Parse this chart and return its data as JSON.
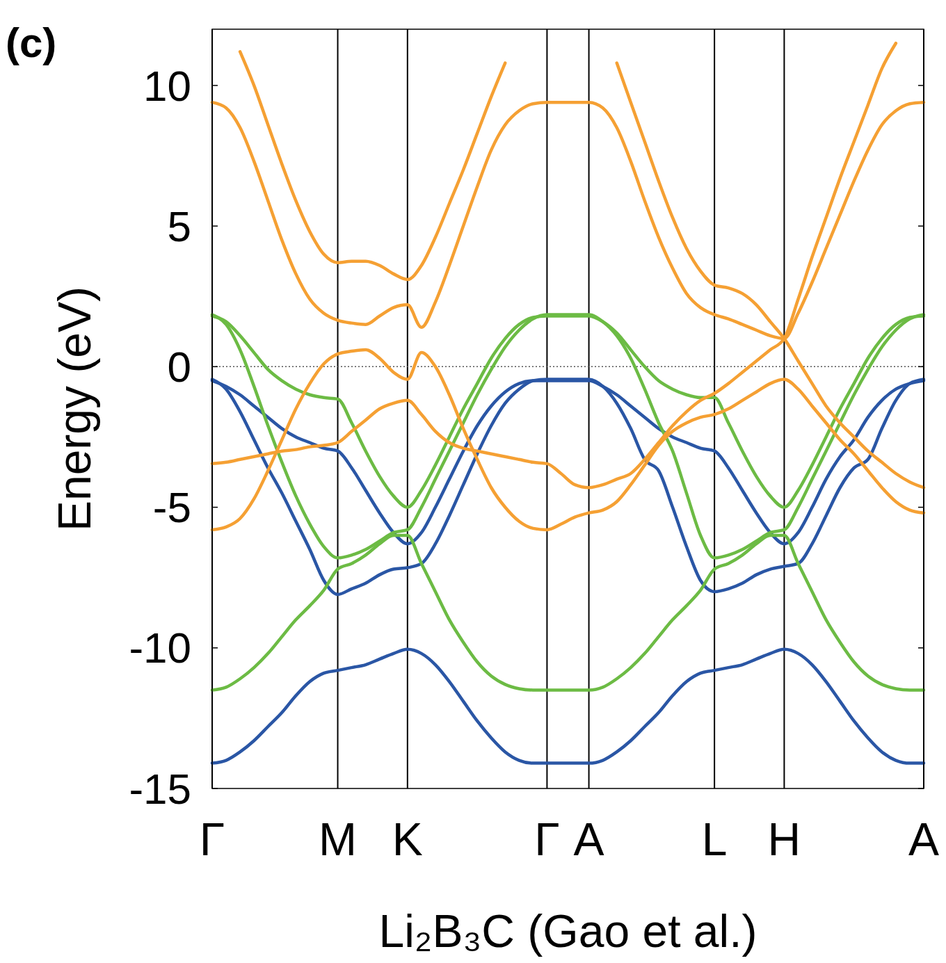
{
  "chart_data": {
    "type": "line",
    "xlabel": "Li₂B₃C (Gao et al.)",
    "ylabel": "Energy (eV)",
    "annotations": [
      "(c)"
    ],
    "categories": [
      "Γ",
      null,
      null,
      null,
      null,
      null,
      null,
      null,
      null,
      "M",
      null,
      null,
      null,
      null,
      "K",
      null,
      null,
      null,
      null,
      null,
      null,
      null,
      null,
      null,
      "Γ",
      null,
      null,
      "A",
      null,
      null,
      null,
      null,
      null,
      null,
      null,
      null,
      "L",
      null,
      null,
      null,
      null,
      "H",
      null,
      null,
      null,
      null,
      null,
      null,
      null,
      null,
      null,
      "A"
    ],
    "ylim": [
      -15,
      12
    ],
    "yticks": [
      -15,
      -10,
      -5,
      0,
      5,
      10
    ],
    "grid": "x",
    "line_style": "solid",
    "ref_lines": [
      {
        "axis": "y",
        "value": 0,
        "line_style": "dotted",
        "color": "#555555"
      }
    ],
    "series": [
      {
        "color": "#2a56a5",
        "values": [
          -14.1,
          -14.0,
          -13.7,
          -13.3,
          -12.8,
          -12.3,
          -11.7,
          -11.2,
          -10.9,
          -10.8,
          -10.7,
          -10.6,
          -10.4,
          -10.2,
          -10.05,
          -10.2,
          -10.6,
          -11.2,
          -11.9,
          -12.6,
          -13.2,
          -13.7,
          -14.0,
          -14.1,
          -14.1,
          -14.1,
          -14.1,
          -14.1,
          -14.0,
          -13.7,
          -13.3,
          -12.8,
          -12.3,
          -11.7,
          -11.2,
          -10.9,
          -10.8,
          -10.7,
          -10.6,
          -10.4,
          -10.2,
          -10.05,
          -10.2,
          -10.6,
          -11.2,
          -11.9,
          -12.6,
          -13.2,
          -13.7,
          -14.0,
          -14.1,
          -14.1
        ]
      },
      {
        "color": "#2a56a5",
        "values": [
          -0.45,
          -0.8,
          -1.6,
          -2.6,
          -3.6,
          -4.5,
          -5.5,
          -6.5,
          -7.6,
          -8.1,
          -7.9,
          -7.7,
          -7.4,
          -7.2,
          -7.15,
          -7.0,
          -6.3,
          -5.3,
          -4.2,
          -3.1,
          -2.1,
          -1.3,
          -0.8,
          -0.5,
          -0.45,
          -0.45,
          -0.45,
          -0.45,
          -0.7,
          -1.3,
          -2.2,
          -3.3,
          -3.7,
          -5.0,
          -6.4,
          -7.6,
          -8.0,
          -7.9,
          -7.7,
          -7.4,
          -7.2,
          -7.1,
          -7.0,
          -6.3,
          -5.3,
          -4.3,
          -3.6,
          -3.3,
          -2.2,
          -1.2,
          -0.6,
          -0.45
        ]
      },
      {
        "color": "#2a56a5",
        "values": [
          -0.5,
          -0.7,
          -1.0,
          -1.4,
          -1.8,
          -2.2,
          -2.5,
          -2.7,
          -2.9,
          -3.0,
          -3.6,
          -4.4,
          -5.2,
          -5.9,
          -6.3,
          -5.9,
          -5.0,
          -4.0,
          -3.0,
          -2.1,
          -1.4,
          -0.9,
          -0.6,
          -0.5,
          -0.5,
          -0.5,
          -0.5,
          -0.5,
          -0.7,
          -1.0,
          -1.4,
          -1.8,
          -2.2,
          -2.5,
          -2.7,
          -2.9,
          -3.0,
          -3.6,
          -4.4,
          -5.2,
          -5.9,
          -6.3,
          -5.9,
          -5.0,
          -4.0,
          -3.2,
          -2.6,
          -1.8,
          -1.2,
          -0.8,
          -0.6,
          -0.5
        ]
      },
      {
        "color": "#6cbb44",
        "values": [
          1.8,
          1.6,
          1.1,
          0.5,
          -0.1,
          -0.5,
          -0.8,
          -1.0,
          -1.1,
          -1.15,
          -2.0,
          -3.0,
          -3.9,
          -4.6,
          -5.0,
          -4.4,
          -3.5,
          -2.5,
          -1.5,
          -0.6,
          0.3,
          1.0,
          1.5,
          1.75,
          1.8,
          1.8,
          1.8,
          1.8,
          1.6,
          1.2,
          0.6,
          0.0,
          -0.5,
          -0.8,
          -1.0,
          -1.1,
          -1.1,
          -2.0,
          -3.0,
          -3.9,
          -4.6,
          -5.0,
          -4.4,
          -3.5,
          -2.5,
          -1.5,
          -0.6,
          0.3,
          1.0,
          1.5,
          1.75,
          1.8
        ]
      },
      {
        "color": "#6cbb44",
        "values": [
          1.85,
          1.5,
          0.6,
          -0.7,
          -2.1,
          -3.4,
          -4.6,
          -5.6,
          -6.4,
          -6.8,
          -6.7,
          -6.5,
          -6.2,
          -5.9,
          -5.8,
          -5.0,
          -4.0,
          -3.0,
          -2.0,
          -1.0,
          -0.1,
          0.7,
          1.3,
          1.7,
          1.85,
          1.85,
          1.85,
          1.85,
          1.6,
          1.1,
          0.3,
          -0.8,
          -2.0,
          -3.0,
          -4.5,
          -6.0,
          -6.8,
          -6.7,
          -6.5,
          -6.2,
          -5.9,
          -5.8,
          -5.0,
          -4.0,
          -3.0,
          -2.0,
          -1.0,
          -0.1,
          0.7,
          1.3,
          1.7,
          1.85
        ]
      },
      {
        "color": "#6cbb44",
        "values": [
          -11.5,
          -11.4,
          -11.1,
          -10.7,
          -10.2,
          -9.6,
          -9.0,
          -8.5,
          -7.95,
          -7.2,
          -7.0,
          -6.7,
          -6.3,
          -6.0,
          -6.0,
          -7.0,
          -8.0,
          -9.0,
          -9.8,
          -10.5,
          -11.0,
          -11.3,
          -11.45,
          -11.5,
          -11.5,
          -11.5,
          -11.5,
          -11.5,
          -11.4,
          -11.1,
          -10.7,
          -10.2,
          -9.6,
          -9.0,
          -8.5,
          -7.95,
          -7.2,
          -7.0,
          -6.7,
          -6.3,
          -6.0,
          -6.0,
          -7.0,
          -8.0,
          -9.0,
          -9.8,
          -10.5,
          -11.0,
          -11.3,
          -11.45,
          -11.5,
          -11.5
        ]
      },
      {
        "color": "#f5a033",
        "values": [
          null,
          null,
          11.2,
          10.0,
          8.6,
          7.2,
          5.9,
          4.8,
          4.0,
          3.7,
          3.75,
          3.75,
          3.6,
          3.3,
          3.1,
          3.6,
          4.6,
          5.8,
          7.0,
          8.3,
          9.6,
          10.8,
          null,
          null,
          null,
          null,
          null,
          null,
          null,
          null,
          null,
          null,
          null,
          null,
          null,
          null,
          null,
          null,
          null,
          null,
          null,
          null,
          null,
          null,
          null,
          null,
          null,
          null,
          null,
          null,
          null,
          null
        ]
      },
      {
        "color": "#f5a033",
        "values": [
          null,
          null,
          null,
          null,
          null,
          null,
          null,
          null,
          null,
          null,
          null,
          null,
          null,
          null,
          null,
          null,
          null,
          null,
          null,
          null,
          null,
          null,
          null,
          null,
          null,
          null,
          null,
          null,
          null,
          10.8,
          9.4,
          8.0,
          6.6,
          5.3,
          4.2,
          3.4,
          2.9,
          2.8,
          2.6,
          2.2,
          1.6,
          1.0,
          0.2,
          -0.6,
          -1.4,
          -2.0,
          -2.5,
          -3.0,
          -3.4,
          -3.8,
          -4.1,
          -4.3
        ]
      },
      {
        "color": "#f5a033",
        "values": [
          9.4,
          9.2,
          8.5,
          7.3,
          5.9,
          4.5,
          3.3,
          2.4,
          1.9,
          1.65,
          1.55,
          1.5,
          1.8,
          2.1,
          2.2,
          1.4,
          2.3,
          3.6,
          5.0,
          6.4,
          7.7,
          8.6,
          9.1,
          9.35,
          9.4,
          9.4,
          9.4,
          9.4,
          9.2,
          8.5,
          7.3,
          5.9,
          4.6,
          3.5,
          2.6,
          2.1,
          1.85,
          1.7,
          1.5,
          1.3,
          1.1,
          1.0,
          1.9,
          3.0,
          4.2,
          5.4,
          6.6,
          7.7,
          8.6,
          9.1,
          9.35,
          9.4
        ]
      },
      {
        "color": "#f5a033",
        "values": [
          -3.45,
          -3.4,
          -3.3,
          -3.2,
          -3.1,
          -3.0,
          -2.95,
          -2.85,
          -2.8,
          -2.7,
          -2.3,
          -1.9,
          -1.5,
          -1.3,
          -1.2,
          -1.7,
          -2.3,
          -2.7,
          -2.9,
          -3.0,
          -3.1,
          -3.2,
          -3.3,
          -3.4,
          -3.45,
          -3.8,
          -4.2,
          -4.3,
          -4.2,
          -4.0,
          -3.8,
          -3.3,
          -2.7,
          -2.1,
          -1.6,
          -1.2,
          -0.95,
          -0.6,
          -0.2,
          0.2,
          0.6,
          1.0,
          2.4,
          3.9,
          5.3,
          6.7,
          8.0,
          9.3,
          10.6,
          11.5,
          null,
          null
        ]
      },
      {
        "color": "#f5a033",
        "values": [
          -5.8,
          -5.7,
          -5.4,
          -4.7,
          -3.7,
          -2.6,
          -1.5,
          -0.6,
          0.1,
          0.45,
          0.55,
          0.6,
          0.3,
          -0.2,
          -0.45,
          0.5,
          0.0,
          -1.0,
          -2.2,
          -3.3,
          -4.3,
          -5.0,
          -5.5,
          -5.75,
          -5.8,
          -5.6,
          -5.35,
          -5.2,
          -5.1,
          -4.8,
          -4.2,
          -3.5,
          -2.8,
          -2.3,
          -2.0,
          -1.8,
          -1.7,
          -1.5,
          -1.2,
          -0.9,
          -0.6,
          -0.45,
          -0.8,
          -1.4,
          -2.0,
          -2.6,
          -3.1,
          -3.7,
          -4.3,
          -4.8,
          -5.1,
          -5.2
        ]
      }
    ]
  }
}
